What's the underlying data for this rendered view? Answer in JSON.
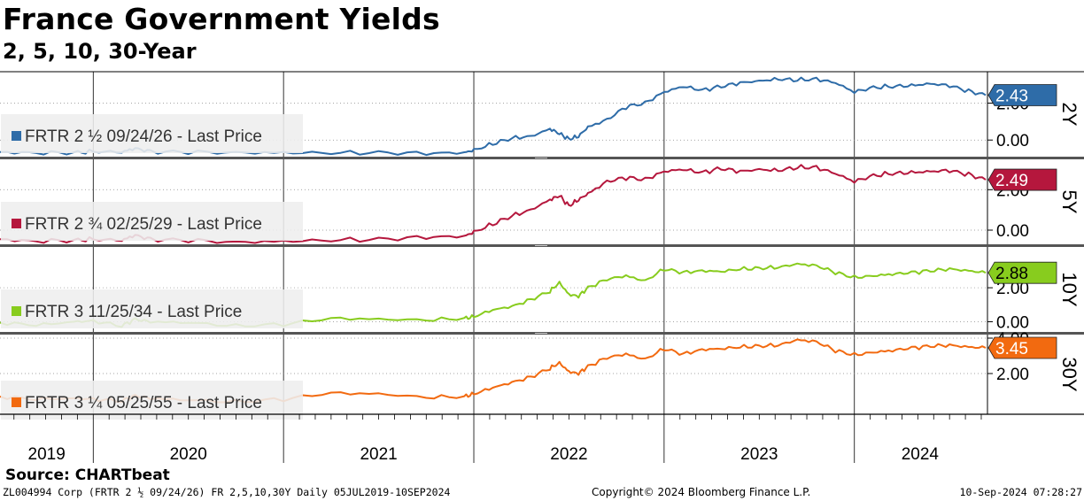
{
  "title": "France Government Yields",
  "subtitle": "2, 5, 10, 30-Year",
  "source": "Source: CHARTbeat",
  "footer": {
    "left": "ZL004994 Corp (FRTR 2 ½ 09/24/26) FR 2,5,10,30Y  Daily 05JUL2019-10SEP2024",
    "center": "Copyright© 2024 Bloomberg Finance L.P.",
    "right": "10-Sep-2024 07:28:27"
  },
  "chart_data": {
    "type": "line",
    "x_start": 2019.51,
    "x_end": 2024.69,
    "x_ticks": [
      "2019",
      "2020",
      "2021",
      "2022",
      "2023",
      "2024"
    ],
    "panels": [
      {
        "key": "2y",
        "label": "2Y",
        "legend": "FRTR 2 ½ 09/24/26 - Last Price",
        "color": "#2e6ca8",
        "last_value": "2.43",
        "ylim": [
          -0.9,
          3.7
        ],
        "y_ticks": [
          {
            "value": 0,
            "label": "0.00"
          },
          {
            "value": 2,
            "label": "2.00"
          }
        ],
        "points": [
          [
            2019.51,
            -0.65
          ],
          [
            2019.7,
            -0.7
          ],
          [
            2019.9,
            -0.68
          ],
          [
            2020.0,
            -0.62
          ],
          [
            2020.15,
            -0.65
          ],
          [
            2020.22,
            -0.45
          ],
          [
            2020.3,
            -0.62
          ],
          [
            2020.5,
            -0.65
          ],
          [
            2020.75,
            -0.68
          ],
          [
            2021.0,
            -0.68
          ],
          [
            2021.25,
            -0.7
          ],
          [
            2021.5,
            -0.68
          ],
          [
            2021.75,
            -0.72
          ],
          [
            2021.95,
            -0.68
          ],
          [
            2022.0,
            -0.55
          ],
          [
            2022.1,
            -0.2
          ],
          [
            2022.2,
            0.1
          ],
          [
            2022.3,
            0.2
          ],
          [
            2022.4,
            0.6
          ],
          [
            2022.45,
            0.35
          ],
          [
            2022.5,
            0.05
          ],
          [
            2022.55,
            0.2
          ],
          [
            2022.6,
            0.7
          ],
          [
            2022.7,
            1.1
          ],
          [
            2022.8,
            1.8
          ],
          [
            2022.9,
            2.0
          ],
          [
            2023.0,
            2.6
          ],
          [
            2023.1,
            2.9
          ],
          [
            2023.2,
            2.7
          ],
          [
            2023.3,
            2.9
          ],
          [
            2023.4,
            3.1
          ],
          [
            2023.5,
            3.2
          ],
          [
            2023.6,
            3.3
          ],
          [
            2023.7,
            3.25
          ],
          [
            2023.8,
            3.3
          ],
          [
            2023.9,
            3.1
          ],
          [
            2024.0,
            2.6
          ],
          [
            2024.1,
            2.85
          ],
          [
            2024.2,
            2.9
          ],
          [
            2024.3,
            2.95
          ],
          [
            2024.4,
            3.05
          ],
          [
            2024.5,
            2.95
          ],
          [
            2024.6,
            2.65
          ],
          [
            2024.69,
            2.43
          ]
        ]
      },
      {
        "key": "5y",
        "label": "5Y",
        "legend": "FRTR 2 ¾ 02/25/29 - Last Price",
        "color": "#b5173d",
        "last_value": "2.49",
        "ylim": [
          -0.7,
          3.5
        ],
        "y_ticks": [
          {
            "value": 0,
            "label": "0.00"
          },
          {
            "value": 2,
            "label": "2.00"
          }
        ],
        "points": [
          [
            2019.51,
            -0.45
          ],
          [
            2019.7,
            -0.55
          ],
          [
            2019.9,
            -0.5
          ],
          [
            2020.0,
            -0.45
          ],
          [
            2020.15,
            -0.5
          ],
          [
            2020.22,
            -0.25
          ],
          [
            2020.3,
            -0.45
          ],
          [
            2020.5,
            -0.5
          ],
          [
            2020.75,
            -0.6
          ],
          [
            2021.0,
            -0.55
          ],
          [
            2021.25,
            -0.5
          ],
          [
            2021.5,
            -0.45
          ],
          [
            2021.75,
            -0.35
          ],
          [
            2021.95,
            -0.3
          ],
          [
            2022.0,
            -0.1
          ],
          [
            2022.1,
            0.3
          ],
          [
            2022.2,
            0.7
          ],
          [
            2022.3,
            1.0
          ],
          [
            2022.4,
            1.5
          ],
          [
            2022.45,
            1.7
          ],
          [
            2022.5,
            1.2
          ],
          [
            2022.55,
            1.5
          ],
          [
            2022.6,
            1.8
          ],
          [
            2022.7,
            2.4
          ],
          [
            2022.8,
            2.6
          ],
          [
            2022.9,
            2.5
          ],
          [
            2023.0,
            2.9
          ],
          [
            2023.1,
            3.0
          ],
          [
            2023.2,
            2.85
          ],
          [
            2023.3,
            3.05
          ],
          [
            2023.4,
            2.9
          ],
          [
            2023.5,
            3.0
          ],
          [
            2023.6,
            2.95
          ],
          [
            2023.7,
            3.1
          ],
          [
            2023.8,
            3.1
          ],
          [
            2023.9,
            2.8
          ],
          [
            2024.0,
            2.4
          ],
          [
            2024.1,
            2.7
          ],
          [
            2024.2,
            2.8
          ],
          [
            2024.3,
            2.85
          ],
          [
            2024.4,
            2.9
          ],
          [
            2024.5,
            2.95
          ],
          [
            2024.6,
            2.75
          ],
          [
            2024.69,
            2.49
          ]
        ]
      },
      {
        "key": "10y",
        "label": "10Y",
        "legend": "FRTR 3 11/25/34 - Last Price",
        "color": "#88cc1e",
        "last_value": "2.88",
        "ylim": [
          -0.6,
          4.4
        ],
        "y_ticks": [
          {
            "value": 0,
            "label": "0.00"
          },
          {
            "value": 2,
            "label": "2.00"
          }
        ],
        "points": [
          [
            2019.51,
            -0.05
          ],
          [
            2019.7,
            -0.2
          ],
          [
            2019.9,
            0.0
          ],
          [
            2020.0,
            0.05
          ],
          [
            2020.15,
            -0.25
          ],
          [
            2020.22,
            0.15
          ],
          [
            2020.3,
            0.0
          ],
          [
            2020.5,
            -0.05
          ],
          [
            2020.75,
            -0.25
          ],
          [
            2021.0,
            -0.15
          ],
          [
            2021.25,
            0.2
          ],
          [
            2021.5,
            0.15
          ],
          [
            2021.75,
            0.1
          ],
          [
            2021.95,
            0.2
          ],
          [
            2022.0,
            0.3
          ],
          [
            2022.1,
            0.7
          ],
          [
            2022.2,
            0.9
          ],
          [
            2022.3,
            1.3
          ],
          [
            2022.4,
            1.8
          ],
          [
            2022.45,
            2.3
          ],
          [
            2022.5,
            1.6
          ],
          [
            2022.55,
            1.5
          ],
          [
            2022.6,
            2.0
          ],
          [
            2022.7,
            2.5
          ],
          [
            2022.8,
            2.7
          ],
          [
            2022.9,
            2.4
          ],
          [
            2023.0,
            3.1
          ],
          [
            2023.1,
            2.9
          ],
          [
            2023.2,
            3.0
          ],
          [
            2023.3,
            2.95
          ],
          [
            2023.4,
            3.1
          ],
          [
            2023.5,
            3.15
          ],
          [
            2023.6,
            3.2
          ],
          [
            2023.7,
            3.4
          ],
          [
            2023.8,
            3.3
          ],
          [
            2023.9,
            2.9
          ],
          [
            2024.0,
            2.6
          ],
          [
            2024.1,
            2.7
          ],
          [
            2024.2,
            2.8
          ],
          [
            2024.3,
            2.9
          ],
          [
            2024.4,
            3.0
          ],
          [
            2024.5,
            3.1
          ],
          [
            2024.6,
            3.0
          ],
          [
            2024.69,
            2.88
          ]
        ]
      },
      {
        "key": "30y",
        "label": "30Y",
        "legend": "FRTR 3 ¼ 05/25/55 - Last Price",
        "color": "#f26a10",
        "last_value": "3.45",
        "ylim": [
          -0.3,
          4.2
        ],
        "y_ticks": [
          {
            "value": 2,
            "label": "2.00"
          },
          {
            "value": 4,
            "label": "4.00"
          }
        ],
        "points": [
          [
            2019.51,
            0.7
          ],
          [
            2019.7,
            0.55
          ],
          [
            2019.9,
            0.6
          ],
          [
            2020.0,
            0.55
          ],
          [
            2020.15,
            0.45
          ],
          [
            2020.22,
            0.75
          ],
          [
            2020.3,
            0.6
          ],
          [
            2020.5,
            0.5
          ],
          [
            2020.75,
            0.4
          ],
          [
            2021.0,
            0.55
          ],
          [
            2021.25,
            0.9
          ],
          [
            2021.5,
            0.85
          ],
          [
            2021.75,
            0.65
          ],
          [
            2021.95,
            0.7
          ],
          [
            2022.0,
            0.85
          ],
          [
            2022.1,
            1.2
          ],
          [
            2022.2,
            1.5
          ],
          [
            2022.3,
            1.8
          ],
          [
            2022.4,
            2.3
          ],
          [
            2022.45,
            2.6
          ],
          [
            2022.5,
            2.1
          ],
          [
            2022.55,
            2.0
          ],
          [
            2022.6,
            2.4
          ],
          [
            2022.7,
            2.9
          ],
          [
            2022.8,
            3.1
          ],
          [
            2022.9,
            2.8
          ],
          [
            2023.0,
            3.4
          ],
          [
            2023.1,
            3.1
          ],
          [
            2023.2,
            3.35
          ],
          [
            2023.3,
            3.4
          ],
          [
            2023.4,
            3.5
          ],
          [
            2023.5,
            3.55
          ],
          [
            2023.6,
            3.6
          ],
          [
            2023.7,
            3.9
          ],
          [
            2023.8,
            3.8
          ],
          [
            2023.9,
            3.3
          ],
          [
            2024.0,
            3.05
          ],
          [
            2024.1,
            3.2
          ],
          [
            2024.2,
            3.3
          ],
          [
            2024.3,
            3.45
          ],
          [
            2024.4,
            3.55
          ],
          [
            2024.5,
            3.6
          ],
          [
            2024.6,
            3.5
          ],
          [
            2024.69,
            3.45
          ]
        ]
      }
    ]
  }
}
